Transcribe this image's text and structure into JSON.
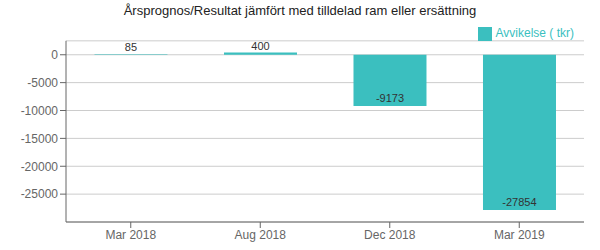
{
  "chart_data": {
    "type": "bar",
    "title": "Årsprognos/Resultat jämfört med tilldelad ram eller ersättning",
    "categories": [
      "Mar 2018",
      "Aug 2018",
      "Dec 2018",
      "Mar 2019"
    ],
    "series": [
      {
        "name": "Avvikelse ( tkr)",
        "color": "#3bbfbf",
        "values": [
          85,
          400,
          -9173,
          -27854
        ]
      }
    ],
    "ylim": [
      -30000,
      2500
    ],
    "yticks": [
      0,
      -5000,
      -10000,
      -15000,
      -20000,
      -25000
    ],
    "grid": true,
    "legend": "upper right",
    "data_labels": true
  }
}
